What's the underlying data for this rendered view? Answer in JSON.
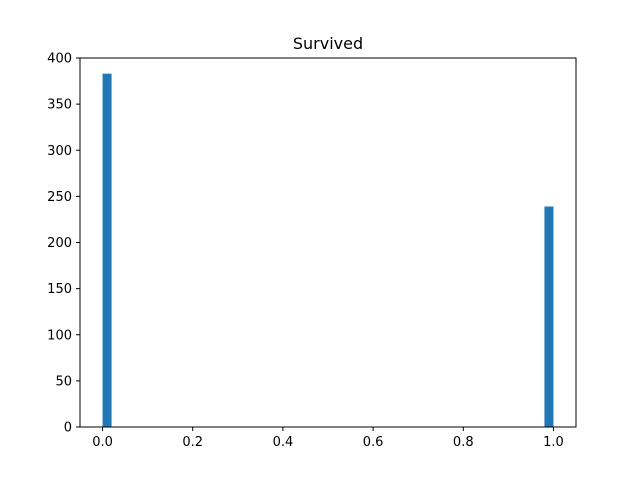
{
  "chart_data": {
    "type": "bar",
    "title": "Survived",
    "xlabel": "",
    "ylabel": "",
    "xlim": [
      -0.05,
      1.05
    ],
    "ylim": [
      0,
      400
    ],
    "bin_width": 0.02,
    "bars": [
      {
        "x": 0.0,
        "value": 383
      },
      {
        "x": 0.98,
        "value": 239
      }
    ],
    "x_ticks": [
      {
        "value": 0.0,
        "label": "0.0"
      },
      {
        "value": 0.2,
        "label": "0.2"
      },
      {
        "value": 0.4,
        "label": "0.4"
      },
      {
        "value": 0.6,
        "label": "0.6"
      },
      {
        "value": 0.8,
        "label": "0.8"
      },
      {
        "value": 1.0,
        "label": "1.0"
      }
    ],
    "y_ticks": [
      {
        "value": 0,
        "label": "0"
      },
      {
        "value": 50,
        "label": "50"
      },
      {
        "value": 100,
        "label": "100"
      },
      {
        "value": 150,
        "label": "150"
      },
      {
        "value": 200,
        "label": "200"
      },
      {
        "value": 250,
        "label": "250"
      },
      {
        "value": 300,
        "label": "300"
      },
      {
        "value": 350,
        "label": "350"
      },
      {
        "value": 400,
        "label": "400"
      }
    ],
    "grid": false,
    "bar_color": "#1f77b4"
  }
}
